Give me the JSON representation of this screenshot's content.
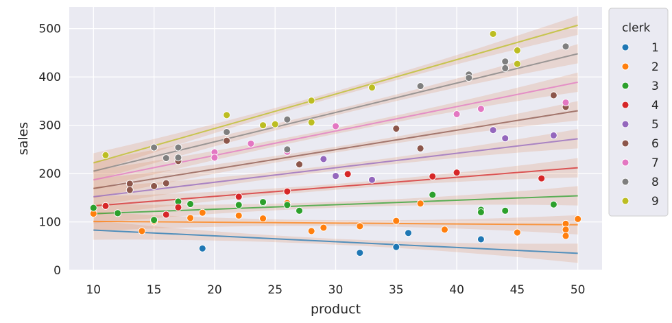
{
  "chart_data": {
    "type": "scatter",
    "title": "",
    "xlabel": "product",
    "ylabel": "sales",
    "xlim": [
      8,
      52
    ],
    "ylim": [
      0,
      545
    ],
    "xticks": [
      10,
      15,
      20,
      25,
      30,
      35,
      40,
      45,
      50
    ],
    "yticks": [
      0,
      100,
      200,
      300,
      400,
      500
    ],
    "grid": true,
    "background": "#eaeaf2",
    "regression_ci_color": "#dd8452",
    "legend": {
      "title": "clerk",
      "placement": "outside-right"
    },
    "series": [
      {
        "name": "1",
        "color": "#1f77b4",
        "points": [
          [
            19,
            45
          ],
          [
            32,
            36
          ],
          [
            35,
            48
          ],
          [
            36,
            77
          ],
          [
            42,
            64
          ]
        ],
        "fit": [
          [
            10,
            83
          ],
          [
            50,
            35
          ]
        ]
      },
      {
        "name": "2",
        "color": "#ff7f0e",
        "points": [
          [
            10,
            117
          ],
          [
            14,
            81
          ],
          [
            15,
            101
          ],
          [
            18,
            108
          ],
          [
            19,
            119
          ],
          [
            22,
            113
          ],
          [
            24,
            107
          ],
          [
            26,
            139
          ],
          [
            28,
            81
          ],
          [
            29,
            88
          ],
          [
            32,
            91
          ],
          [
            35,
            102
          ],
          [
            37,
            138
          ],
          [
            39,
            84
          ],
          [
            45,
            78
          ],
          [
            49,
            96
          ],
          [
            49,
            84
          ],
          [
            49,
            71
          ],
          [
            50,
            106
          ]
        ],
        "fit": [
          [
            10,
            101
          ],
          [
            50,
            94
          ]
        ]
      },
      {
        "name": "3",
        "color": "#2ca02c",
        "points": [
          [
            10,
            129
          ],
          [
            12,
            118
          ],
          [
            15,
            104
          ],
          [
            17,
            142
          ],
          [
            18,
            137
          ],
          [
            22,
            135
          ],
          [
            24,
            139
          ],
          [
            24,
            141
          ],
          [
            26,
            135
          ],
          [
            27,
            123
          ],
          [
            38,
            156
          ],
          [
            42,
            125
          ],
          [
            42,
            120
          ],
          [
            44,
            123
          ],
          [
            48,
            136
          ]
        ],
        "fit": [
          [
            10,
            117
          ],
          [
            50,
            154
          ]
        ]
      },
      {
        "name": "4",
        "color": "#d62728",
        "points": [
          [
            11,
            133
          ],
          [
            16,
            115
          ],
          [
            17,
            130
          ],
          [
            22,
            152
          ],
          [
            26,
            163
          ],
          [
            31,
            199
          ],
          [
            38,
            194
          ],
          [
            40,
            202
          ],
          [
            47,
            190
          ]
        ],
        "fit": [
          [
            10,
            133
          ],
          [
            50,
            212
          ]
        ]
      },
      {
        "name": "5",
        "color": "#9467bd",
        "points": [
          [
            29,
            230
          ],
          [
            30,
            195
          ],
          [
            33,
            187
          ],
          [
            43,
            290
          ],
          [
            44,
            273
          ],
          [
            48,
            279
          ]
        ],
        "fit": [
          [
            10,
            152
          ],
          [
            50,
            272
          ]
        ]
      },
      {
        "name": "6",
        "color": "#8c564b",
        "points": [
          [
            13,
            179
          ],
          [
            13,
            166
          ],
          [
            15,
            174
          ],
          [
            16,
            180
          ],
          [
            17,
            226
          ],
          [
            21,
            268
          ],
          [
            27,
            219
          ],
          [
            35,
            293
          ],
          [
            37,
            252
          ],
          [
            48,
            362
          ],
          [
            49,
            338
          ]
        ],
        "fit": [
          [
            10,
            169
          ],
          [
            50,
            330
          ]
        ]
      },
      {
        "name": "7",
        "color": "#e377c2",
        "points": [
          [
            20,
            244
          ],
          [
            20,
            233
          ],
          [
            23,
            262
          ],
          [
            26,
            245
          ],
          [
            30,
            298
          ],
          [
            40,
            323
          ],
          [
            42,
            334
          ],
          [
            49,
            347
          ]
        ],
        "fit": [
          [
            10,
            187
          ],
          [
            50,
            389
          ]
        ]
      },
      {
        "name": "8",
        "color": "#7f7f7f",
        "points": [
          [
            15,
            254
          ],
          [
            16,
            232
          ],
          [
            17,
            254
          ],
          [
            17,
            233
          ],
          [
            21,
            286
          ],
          [
            26,
            312
          ],
          [
            26,
            250
          ],
          [
            37,
            381
          ],
          [
            41,
            405
          ],
          [
            41,
            398
          ],
          [
            44,
            432
          ],
          [
            44,
            418
          ],
          [
            49,
            463
          ]
        ],
        "fit": [
          [
            10,
            205
          ],
          [
            50,
            448
          ]
        ]
      },
      {
        "name": "9",
        "color": "#bcbd22",
        "points": [
          [
            11,
            238
          ],
          [
            21,
            321
          ],
          [
            24,
            300
          ],
          [
            25,
            302
          ],
          [
            28,
            351
          ],
          [
            28,
            306
          ],
          [
            33,
            378
          ],
          [
            43,
            489
          ],
          [
            45,
            455
          ],
          [
            45,
            427
          ]
        ],
        "fit": [
          [
            10,
            222
          ],
          [
            50,
            507
          ]
        ]
      }
    ]
  }
}
